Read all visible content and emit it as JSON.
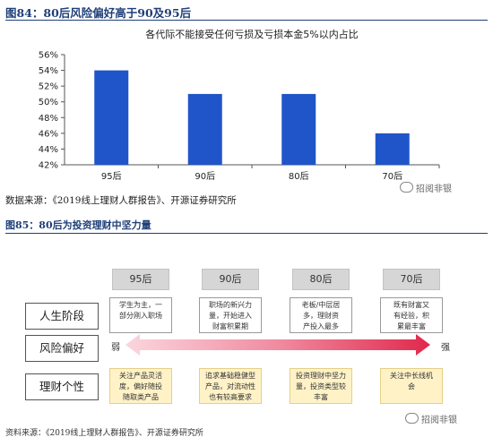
{
  "figure84": {
    "title": "图84：80后风险偏好高于90及95后",
    "source": "数据来源：《2019线上理财人群报告》、开源证券研究所"
  },
  "chart_data": {
    "type": "bar",
    "title": "各代际不能接受任何亏损及亏损本金5%以内占比",
    "categories": [
      "95后",
      "90后",
      "80后",
      "70后"
    ],
    "values": [
      54,
      51,
      51,
      46
    ],
    "ylim": [
      42,
      56
    ],
    "yticks": [
      "42%",
      "44%",
      "46%",
      "48%",
      "50%",
      "52%",
      "54%",
      "56%"
    ],
    "xlabel": "",
    "ylabel": "",
    "bar_color": "#1f55c8",
    "grid": false
  },
  "watermark": {
    "text": "招阅非银"
  },
  "figure85": {
    "title": "图85：80后为投资理财中坚力量",
    "source": "资料来源：《2019线上理财人群报告》、开源证券研究所",
    "eras": [
      "95后",
      "90后",
      "80后",
      "70后"
    ],
    "rows": [
      "人生阶段",
      "风险偏好",
      "理财个性"
    ],
    "stages": [
      "学生为主，一\n部分刚入职场",
      "职场的新兴力\n量，开始进入\n财富积累期",
      "老板/中层居\n多，理财资\n产投入最多",
      "既有财富又\n有经验，积\n累最丰富"
    ],
    "risk_low": "弱",
    "risk_high": "强",
    "traits": [
      "关注产品灵活\n度，偏好随投\n随取类产品",
      "追求基础稳健型\n产品，对流动性\n也有较高要求",
      "投资理财中坚力\n量，投资类型较\n丰富",
      "关注中长线机\n会"
    ],
    "colors": {
      "trait_fill": "#fff2c7",
      "arrow_start": "#fbd6de",
      "arrow_end": "#e0284c"
    }
  }
}
